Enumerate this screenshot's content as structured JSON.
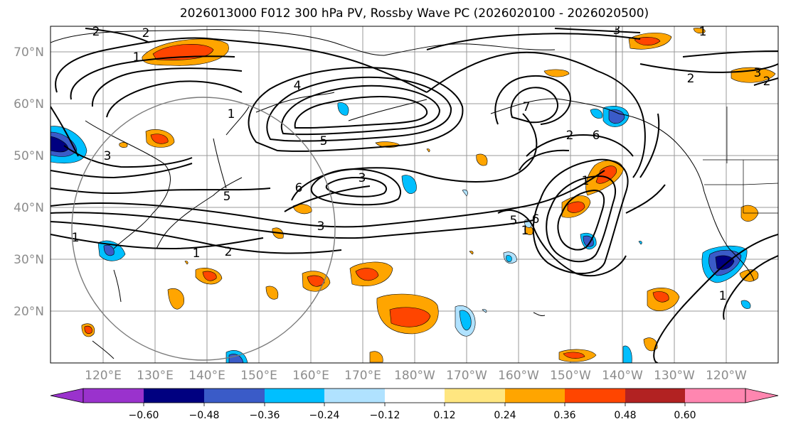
{
  "title": "2026013000 F012 300 hPa PV, Rossby Wave PC (2026020100 - 2026020500)",
  "latitude_labels": [
    "70°N",
    "60°N",
    "50°N",
    "40°N",
    "30°N",
    "20°N"
  ],
  "longitude_labels": [
    "120°E",
    "130°E",
    "140°E",
    "150°E",
    "160°E",
    "170°E",
    "180°W",
    "170°W",
    "160°W",
    "150°W",
    "140°W",
    "130°W",
    "120°W"
  ],
  "colorbar": {
    "ticks": [
      "−0.60",
      "−0.48",
      "−0.36",
      "−0.24",
      "−0.12",
      "0.12",
      "0.24",
      "0.36",
      "0.48",
      "0.60"
    ],
    "colors": [
      "#9a32cd",
      "#000080",
      "#3a5bc8",
      "#00bfff",
      "#b0e2ff",
      "#ffffff",
      "#ffe680",
      "#ffa500",
      "#ff4500",
      "#b22222",
      "#ff86b0"
    ]
  },
  "pv_contour_labels": [
    "1",
    "2",
    "3",
    "4",
    "5",
    "6"
  ],
  "contour_label_list": [
    "1",
    "1",
    "1",
    "2",
    "3",
    "1",
    "2",
    "3",
    "4",
    "5",
    "6",
    "2",
    "3",
    "1",
    "2",
    "3",
    "2",
    "5",
    "6",
    "7",
    "1",
    "2",
    "1",
    "5",
    "6",
    "1",
    "3"
  ]
}
